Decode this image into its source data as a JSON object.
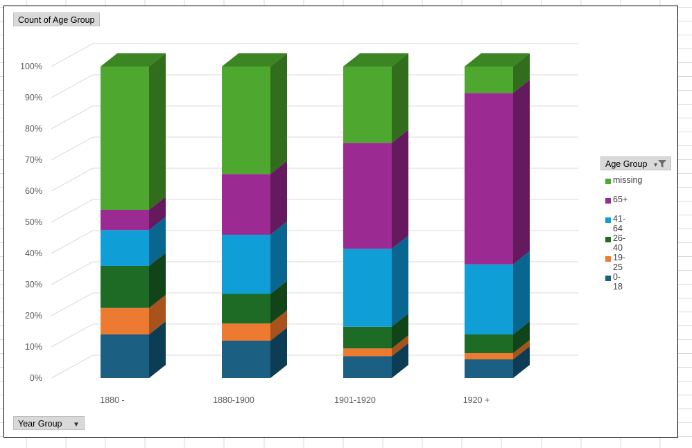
{
  "pivot": {
    "value_field": "Count of Age Group",
    "axis_field": "Year Group",
    "legend_field": "Age Group"
  },
  "icons": {
    "axis_dropdown": "dropdown-arrow-icon",
    "legend_filter": "filter-funnel-icon"
  },
  "chart_data": {
    "type": "bar",
    "subtype": "3d-stacked-100-percent-column",
    "categories": [
      "1880 -",
      "1880-1900",
      "1901-1920",
      "1920 +"
    ],
    "y_ticks": [
      "0%",
      "10%",
      "20%",
      "30%",
      "40%",
      "50%",
      "60%",
      "70%",
      "80%",
      "90%",
      "100%"
    ],
    "ylim": [
      0,
      100
    ],
    "grid": true,
    "legend_position": "right",
    "series": [
      {
        "name": "0-18",
        "color": "#1b5f82",
        "side": "#0d3d55",
        "top": "#24729a",
        "values": [
          14,
          12,
          7,
          6
        ]
      },
      {
        "name": "19-25",
        "color": "#ed7a31",
        "side": "#a8521c",
        "top": "#f19052",
        "values": [
          8.5,
          5.5,
          2.5,
          2
        ]
      },
      {
        "name": "26-40",
        "color": "#1e6b25",
        "side": "#114418",
        "top": "#2a7f32",
        "values": [
          13.5,
          9.5,
          7,
          6
        ]
      },
      {
        "name": "41-64",
        "color": "#0f9ed5",
        "side": "#086690",
        "top": "#3db0de",
        "values": [
          11.5,
          19,
          25,
          22.5
        ]
      },
      {
        "name": "65+",
        "color": "#9b2b92",
        "side": "#651a5f",
        "top": "#ad45a5",
        "values": [
          6.5,
          19.5,
          34,
          55
        ]
      },
      {
        "name": "missing",
        "color": "#4ea72e",
        "side": "#316d1c",
        "top": "#3b8523",
        "values": [
          46,
          34.5,
          24.5,
          8.5
        ]
      }
    ]
  }
}
